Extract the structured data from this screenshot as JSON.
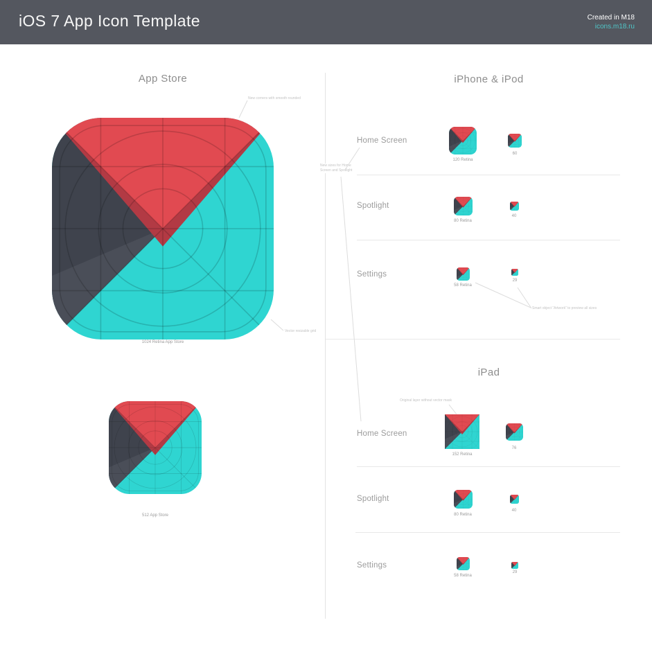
{
  "header": {
    "title": "iOS 7 App Icon Template",
    "credit": "Created in M18",
    "link": "icons.m18.ru"
  },
  "colors": {
    "header_bg": "#54575f",
    "link": "#4fc6c8",
    "cyan": "#2fd5d1",
    "red": "#e14a51",
    "red_dark": "#b23a44",
    "slate": "#3f434d",
    "slate_light": "#4a4e58",
    "grid": "rgba(0,0,0,0.16)"
  },
  "left": {
    "heading": "App Store",
    "large_icon_caption": "1024 Retina App Store",
    "small_icon_caption": "512 App Store",
    "annotation_corners": "New corners with smooth rounded",
    "annotation_grid": "Vector resizable grid"
  },
  "right": {
    "iphone": {
      "heading": "iPhone & iPod",
      "rows": [
        {
          "label": "Home Screen",
          "retina_caption": "120 Retina",
          "small_caption": "60"
        },
        {
          "label": "Spotlight",
          "retina_caption": "80 Retina",
          "small_caption": "40"
        },
        {
          "label": "Settings",
          "retina_caption": "58 Retina",
          "small_caption": "29"
        }
      ],
      "annotation_new_sizes_line1": "New sizes for Home",
      "annotation_new_sizes_line2": "Screen and Spotlight",
      "annotation_smart_object": "Smart object “Artwork” to preview all sizes"
    },
    "ipad": {
      "heading": "iPad",
      "rows": [
        {
          "label": "Home Screen",
          "retina_caption": "152 Retina",
          "small_caption": "76"
        },
        {
          "label": "Spotlight",
          "retina_caption": "80 Retina",
          "small_caption": "40"
        },
        {
          "label": "Settings",
          "retina_caption": "58 Retina",
          "small_caption": "29"
        }
      ],
      "annotation_original_layer": "Original layer without vector mask"
    }
  }
}
